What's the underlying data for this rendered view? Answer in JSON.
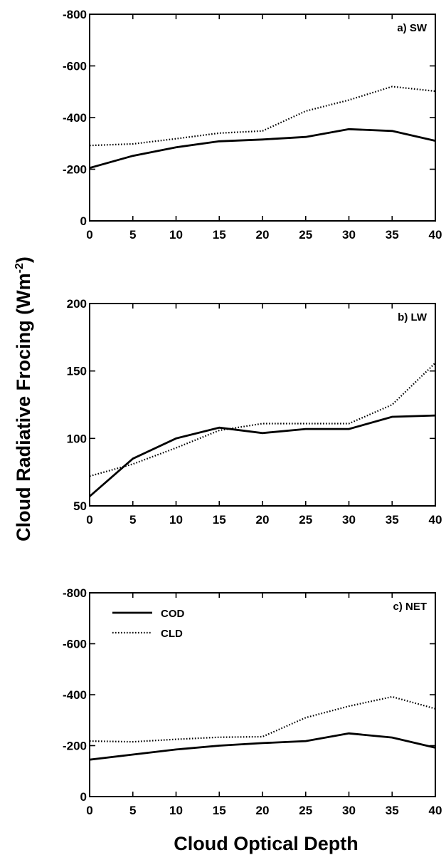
{
  "ylabel_main": "Cloud Radiative Frocing (Wm",
  "ylabel_sup": "-2",
  "ylabel_close": ")",
  "xlabel": "Cloud Optical Depth",
  "chart_data": [
    {
      "type": "line",
      "label": "a)  SW",
      "x": [
        0,
        5,
        10,
        15,
        20,
        25,
        30,
        35,
        40
      ],
      "xlim": [
        0,
        40
      ],
      "xticks": [
        "0",
        "5",
        "10",
        "15",
        "20",
        "25",
        "30",
        "35",
        "40"
      ],
      "ylim": [
        0,
        -800
      ],
      "yticks": [
        "-800",
        "-600",
        "-400",
        "-200",
        "0"
      ],
      "yticks_values": [
        -800,
        -600,
        -400,
        -200,
        0
      ],
      "series": [
        {
          "name": "COD",
          "style": "solid",
          "values": [
            -205,
            -252,
            -285,
            -308,
            -315,
            -325,
            -355,
            -348,
            -310
          ]
        },
        {
          "name": "CLD",
          "style": "dotted",
          "values": [
            -292,
            -298,
            -318,
            -340,
            -348,
            -425,
            -468,
            -520,
            -502
          ]
        }
      ]
    },
    {
      "type": "line",
      "label": "b)  LW",
      "x": [
        0,
        5,
        10,
        15,
        20,
        25,
        30,
        35,
        40
      ],
      "xlim": [
        0,
        40
      ],
      "xticks": [
        "0",
        "5",
        "10",
        "15",
        "20",
        "25",
        "30",
        "35",
        "40"
      ],
      "ylim": [
        50,
        200
      ],
      "yticks": [
        "200",
        "150",
        "100",
        "50"
      ],
      "yticks_values": [
        200,
        150,
        100,
        50
      ],
      "series": [
        {
          "name": "COD",
          "style": "solid",
          "values": [
            57,
            85,
            100,
            108,
            104,
            107,
            107,
            116,
            117
          ]
        },
        {
          "name": "CLD",
          "style": "dotted",
          "values": [
            72,
            81,
            93,
            106,
            111,
            111,
            111,
            125,
            156
          ]
        }
      ]
    },
    {
      "type": "line",
      "label": "c)  NET",
      "x": [
        0,
        5,
        10,
        15,
        20,
        25,
        30,
        35,
        40
      ],
      "xlim": [
        0,
        40
      ],
      "xticks": [
        "0",
        "5",
        "10",
        "15",
        "20",
        "25",
        "30",
        "35",
        "40"
      ],
      "ylim": [
        0,
        -800
      ],
      "yticks": [
        "-800",
        "-600",
        "-400",
        "-200",
        "0"
      ],
      "yticks_values": [
        -800,
        -600,
        -400,
        -200,
        0
      ],
      "legend": [
        "COD",
        "CLD"
      ],
      "series": [
        {
          "name": "COD",
          "style": "solid",
          "values": [
            -145,
            -165,
            -185,
            -200,
            -210,
            -218,
            -248,
            -232,
            -192
          ]
        },
        {
          "name": "CLD",
          "style": "dotted",
          "values": [
            -218,
            -215,
            -225,
            -233,
            -235,
            -310,
            -355,
            -392,
            -345
          ]
        }
      ]
    }
  ]
}
